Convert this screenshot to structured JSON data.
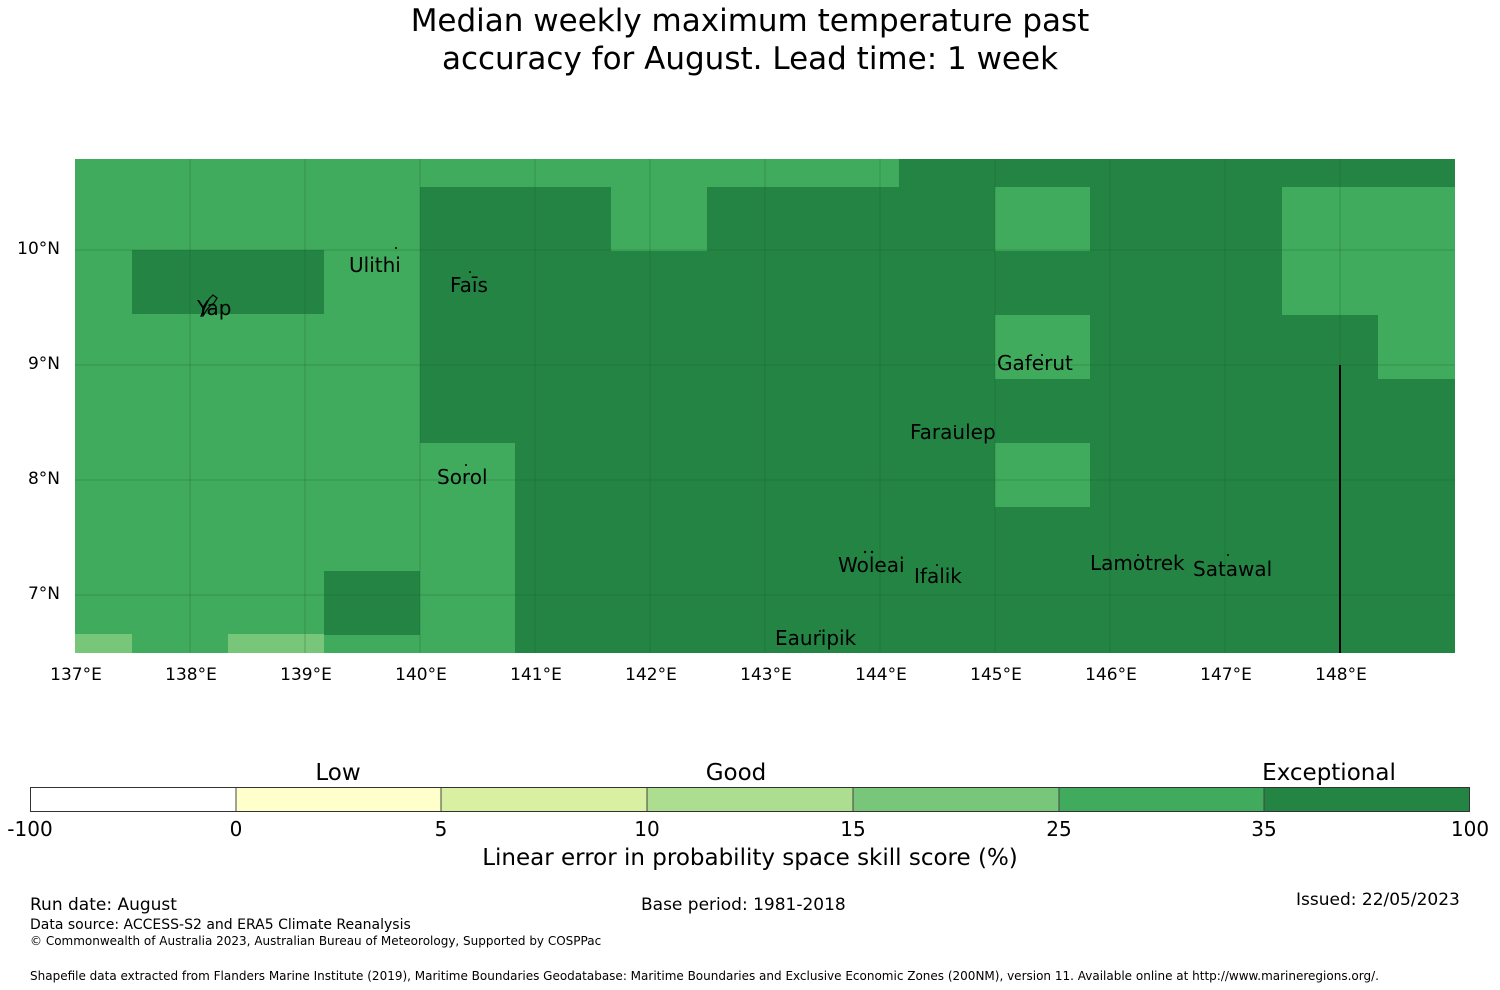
{
  "title_line1": "Median weekly maximum temperature past",
  "title_line2": "accuracy for August. Lead time: 1 week",
  "colors": {
    "cat_neg": "#ffffff",
    "cat_0_5": "#ffffcc",
    "cat_5_10": "#d9f0a3",
    "cat_10_15": "#addd8e",
    "cat_15_25": "#78c679",
    "cat_25_35": "#41ab5d",
    "cat_35_100": "#238443"
  },
  "map": {
    "lat_ticks": [
      "10°N",
      "9°N",
      "8°N",
      "7°N"
    ],
    "lon_ticks": [
      "137°E",
      "138°E",
      "139°E",
      "140°E",
      "141°E",
      "142°E",
      "143°E",
      "144°E",
      "145°E",
      "146°E",
      "147°E",
      "148°E"
    ],
    "places": {
      "ulithi": "Ulithi",
      "fais": "Faīs",
      "yap": "Yap",
      "gaferut": "Gaferut",
      "faraulep": "Faraulep",
      "sorol": "Sorol",
      "woleai": "Woleai",
      "ifalik": "Ifalik",
      "lamotrek": "Lamotrek",
      "satawal": "Satawal",
      "eauripik": "Eauripik"
    }
  },
  "colorbar": {
    "categories": [
      "Low",
      "Good",
      "Exceptional"
    ],
    "tick_labels": [
      "-100",
      "0",
      "5",
      "10",
      "15",
      "25",
      "35",
      "100"
    ],
    "title": "Linear error in probability space skill score (%)"
  },
  "footer": {
    "run_date": "Run date: August",
    "base_period": "Base period: 1981-2018",
    "issued": "Issued: 22/05/2023",
    "data_source": "Data source: ACCESS-S2 and ERA5 Climate Reanalysis",
    "copyright": "© Commonwealth of Australia 2023, Australian Bureau of Meteorology, Supported by COSPPac",
    "shapefile": "Shapefile data extracted from Flanders Marine Institute (2019), Maritime Boundaries Geodatabase: Maritime Boundaries and Exclusive Economic Zones (200NM), version 11. Available online at http://www.marineregions.org/."
  }
}
